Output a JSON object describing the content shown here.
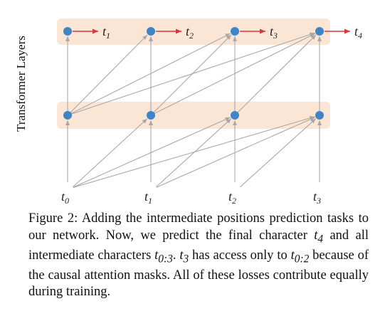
{
  "figure": {
    "y_axis_label": "Transformer Layers",
    "input_tokens": [
      {
        "base": "t",
        "sub": "0"
      },
      {
        "base": "t",
        "sub": "1"
      },
      {
        "base": "t",
        "sub": "2"
      },
      {
        "base": "t",
        "sub": "3"
      }
    ],
    "output_tokens": [
      {
        "base": "t",
        "sub": "1"
      },
      {
        "base": "t",
        "sub": "2"
      },
      {
        "base": "t",
        "sub": "3"
      },
      {
        "base": "t",
        "sub": "4"
      }
    ],
    "colors": {
      "node": "#3d85c6",
      "layer_band": "#fbe6d6",
      "prediction_arrow": "#d9363e",
      "attention_arrow": "#a8a8a8"
    }
  },
  "caption": {
    "label": "Figure 2:",
    "p1": " Adding the intermediate positions prediction tasks to our network. Now, we predict the final character ",
    "m1": "t",
    "m1_sub": "4",
    "p2": " and all intermediate characters ",
    "m2": "t",
    "m2_sub": "0:3",
    "p3": ". ",
    "m3": "t",
    "m3_sub": "3",
    "p4": " has access only to ",
    "m4": "t",
    "m4_sub": "0:2",
    "p5": " because of the causal attention masks. All of these losses contribute equally during training."
  }
}
